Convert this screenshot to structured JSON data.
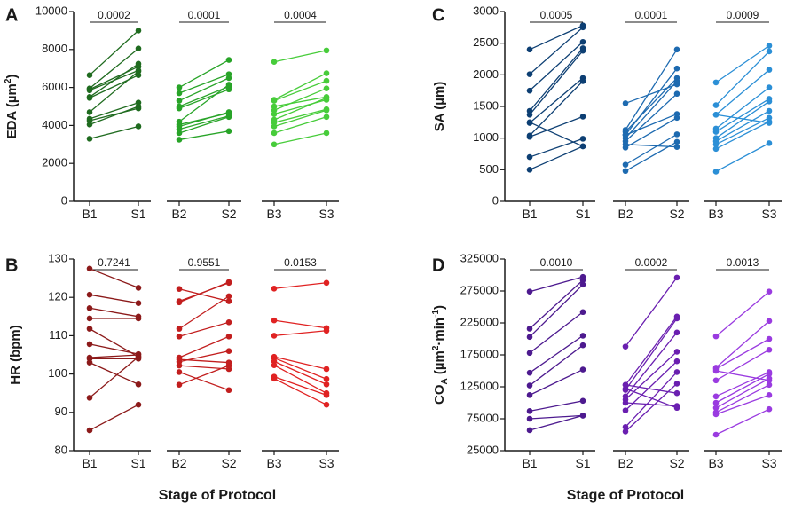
{
  "figure": {
    "xlabel": "Stage of Protocol"
  },
  "chart_data": [
    {
      "letter": "A",
      "type": "line",
      "color": "#1a8f1a",
      "ylabel": "EDA (µm²)",
      "ylabel_main": "EDA (µm",
      "ylabel_sup": "2",
      "ylabel_end": ")",
      "ylim": [
        0,
        10000
      ],
      "yticks": [
        "0",
        "2000",
        "4000",
        "6000",
        "8000",
        "10000"
      ],
      "categories": [
        "B1",
        "S1",
        "B2",
        "S2",
        "B3",
        "S3"
      ],
      "groups": [
        {
          "color": "#1f6b1f",
          "pvalue": "0.0002",
          "pairs": [
            [
              6650,
              9000
            ],
            [
              5950,
              8050
            ],
            [
              5500,
              7250
            ],
            [
              5900,
              7100
            ],
            [
              5850,
              6900
            ],
            [
              5450,
              6650
            ],
            [
              4700,
              6850
            ],
            [
              4350,
              5200
            ],
            [
              4250,
              4900
            ],
            [
              4050,
              5000
            ],
            [
              3300,
              3950
            ]
          ]
        },
        {
          "color": "#28a428",
          "pvalue": "0.0001",
          "pairs": [
            [
              6000,
              7450
            ],
            [
              5700,
              6700
            ],
            [
              5300,
              6500
            ],
            [
              5000,
              6050
            ],
            [
              4900,
              5900
            ],
            [
              4200,
              6150
            ],
            [
              4050,
              4650
            ],
            [
              3950,
              4700
            ],
            [
              3800,
              4500
            ],
            [
              3600,
              4450
            ],
            [
              3250,
              3700
            ]
          ]
        },
        {
          "color": "#47cc3a",
          "pvalue": "0.0004",
          "pairs": [
            [
              7350,
              7950
            ],
            [
              5350,
              6750
            ],
            [
              5300,
              6350
            ],
            [
              5000,
              5500
            ],
            [
              4800,
              5950
            ],
            [
              4600,
              5350
            ],
            [
              4300,
              5450
            ],
            [
              4150,
              4850
            ],
            [
              3950,
              4800
            ],
            [
              3600,
              4450
            ],
            [
              3000,
              3600
            ]
          ]
        }
      ]
    },
    {
      "letter": "B",
      "type": "line",
      "color": "#c81e1e",
      "ylabel": "HR (bpm)",
      "ylim": [
        80,
        130
      ],
      "yticks": [
        "80",
        "90",
        "100",
        "110",
        "120",
        "130"
      ],
      "categories": [
        "B1",
        "S1",
        "B2",
        "S2",
        "B3",
        "S3"
      ],
      "groups": [
        {
          "color": "#8c1a1a",
          "pvalue": "0.7241",
          "pairs": [
            [
              127.5,
              122.5
            ],
            [
              120.7,
              118.5
            ],
            [
              117.2,
              115.0
            ],
            [
              114.5,
              114.5
            ],
            [
              111.8,
              104.5
            ],
            [
              107.8,
              105.2
            ],
            [
              104.3,
              105.0
            ],
            [
              104.0,
              104.0
            ],
            [
              103.0,
              97.3
            ],
            [
              93.8,
              104.5
            ],
            [
              85.3,
              92.0
            ]
          ]
        },
        {
          "color": "#c21e1e",
          "pvalue": "0.9551",
          "pairs": [
            [
              122.2,
              119.0
            ],
            [
              119.0,
              123.8
            ],
            [
              118.7,
              124.0
            ],
            [
              111.8,
              120.3
            ],
            [
              109.8,
              113.5
            ],
            [
              104.3,
              109.8
            ],
            [
              103.8,
              103.0
            ],
            [
              103.2,
              106.0
            ],
            [
              102.2,
              101.3
            ],
            [
              100.5,
              95.8
            ],
            [
              97.2,
              102.2
            ]
          ]
        },
        {
          "color": "#e02222",
          "pvalue": "0.0153",
          "pairs": [
            [
              122.3,
              123.8
            ],
            [
              114.0,
              112.0
            ],
            [
              110.0,
              111.3
            ],
            [
              104.5,
              101.3
            ],
            [
              104.2,
              98.7
            ],
            [
              103.3,
              97.3
            ],
            [
              102.3,
              95.0
            ],
            [
              99.3,
              94.5
            ],
            [
              98.8,
              92.0
            ]
          ]
        }
      ]
    },
    {
      "letter": "C",
      "type": "line",
      "color": "#1a6fb5",
      "ylabel": "SA (µm)",
      "ylim": [
        0,
        3000
      ],
      "yticks": [
        "0",
        "500",
        "1000",
        "1500",
        "2000",
        "2500",
        "3000"
      ],
      "categories": [
        "B1",
        "S1",
        "B2",
        "S2",
        "B3",
        "S3"
      ],
      "groups": [
        {
          "color": "#0d3f73",
          "pvalue": "0.0005",
          "pairs": [
            [
              2400,
              2780
            ],
            [
              2010,
              2750
            ],
            [
              1750,
              2520
            ],
            [
              1430,
              2420
            ],
            [
              1370,
              2380
            ],
            [
              1240,
              1950
            ],
            [
              1040,
              1900
            ],
            [
              1020,
              1340
            ],
            [
              700,
              990
            ],
            [
              500,
              870
            ],
            [
              1250,
              870
            ]
          ]
        },
        {
          "color": "#1d6ab0",
          "pvalue": "0.0001",
          "pairs": [
            [
              1550,
              1850
            ],
            [
              1130,
              2400
            ],
            [
              1100,
              1950
            ],
            [
              1050,
              2100
            ],
            [
              1000,
              1900
            ],
            [
              950,
              1700
            ],
            [
              850,
              1320
            ],
            [
              580,
              1060
            ],
            [
              480,
              940
            ],
            [
              1050,
              1380
            ],
            [
              900,
              860
            ]
          ]
        },
        {
          "color": "#2b8fd6",
          "pvalue": "0.0009",
          "pairs": [
            [
              1880,
              2460
            ],
            [
              1520,
              2370
            ],
            [
              1370,
              2080
            ],
            [
              1150,
              1800
            ],
            [
              1100,
              1620
            ],
            [
              1000,
              1580
            ],
            [
              950,
              1430
            ],
            [
              900,
              1320
            ],
            [
              830,
              1260
            ],
            [
              470,
              920
            ],
            [
              1370,
              1240
            ]
          ]
        }
      ]
    },
    {
      "letter": "D",
      "type": "line",
      "color": "#7a2bc9",
      "ylabel": "COA (µm²·min⁻¹)",
      "ylabel_main": "CO",
      "ylabel_sub": "A",
      "ylabel_mid": " (µm",
      "ylabel_sup": "2",
      "ylabel_mid2": "·min",
      "ylabel_sup2": "-1",
      "ylabel_end": ")",
      "ylim": [
        25000,
        325000
      ],
      "yticks": [
        "25000",
        "75000",
        "125000",
        "175000",
        "225000",
        "275000",
        "325000"
      ],
      "categories": [
        "B1",
        "S1",
        "B2",
        "S2",
        "B3",
        "S3"
      ],
      "groups": [
        {
          "color": "#4d1a8f",
          "pvalue": "0.0010",
          "pairs": [
            [
              274000,
              297000
            ],
            [
              216000,
              292000
            ],
            [
              203000,
              285000
            ],
            [
              178000,
              242000
            ],
            [
              147000,
              205000
            ],
            [
              127000,
              190000
            ],
            [
              112000,
              152000
            ],
            [
              87000,
              103000
            ],
            [
              75000,
              80000
            ],
            [
              57000,
              80000
            ]
          ]
        },
        {
          "color": "#6a1fb0",
          "pvalue": "0.0002",
          "pairs": [
            [
              188000,
              296000
            ],
            [
              128000,
              235000
            ],
            [
              120000,
              232000
            ],
            [
              110000,
              210000
            ],
            [
              105000,
              180000
            ],
            [
              88000,
              165000
            ],
            [
              62000,
              148000
            ],
            [
              55000,
              130000
            ],
            [
              128000,
              115000
            ],
            [
              100000,
              95000
            ],
            [
              122000,
              92000
            ]
          ]
        },
        {
          "color": "#9a3be0",
          "pvalue": "0.0013",
          "pairs": [
            [
              204000,
              274000
            ],
            [
              155000,
              228000
            ],
            [
              153000,
              200000
            ],
            [
              135000,
              183000
            ],
            [
              110000,
              148000
            ],
            [
              100000,
              145000
            ],
            [
              92000,
              138000
            ],
            [
              85000,
              128000
            ],
            [
              82000,
              112000
            ],
            [
              50000,
              90000
            ],
            [
              150000,
              135000
            ]
          ]
        }
      ]
    }
  ]
}
